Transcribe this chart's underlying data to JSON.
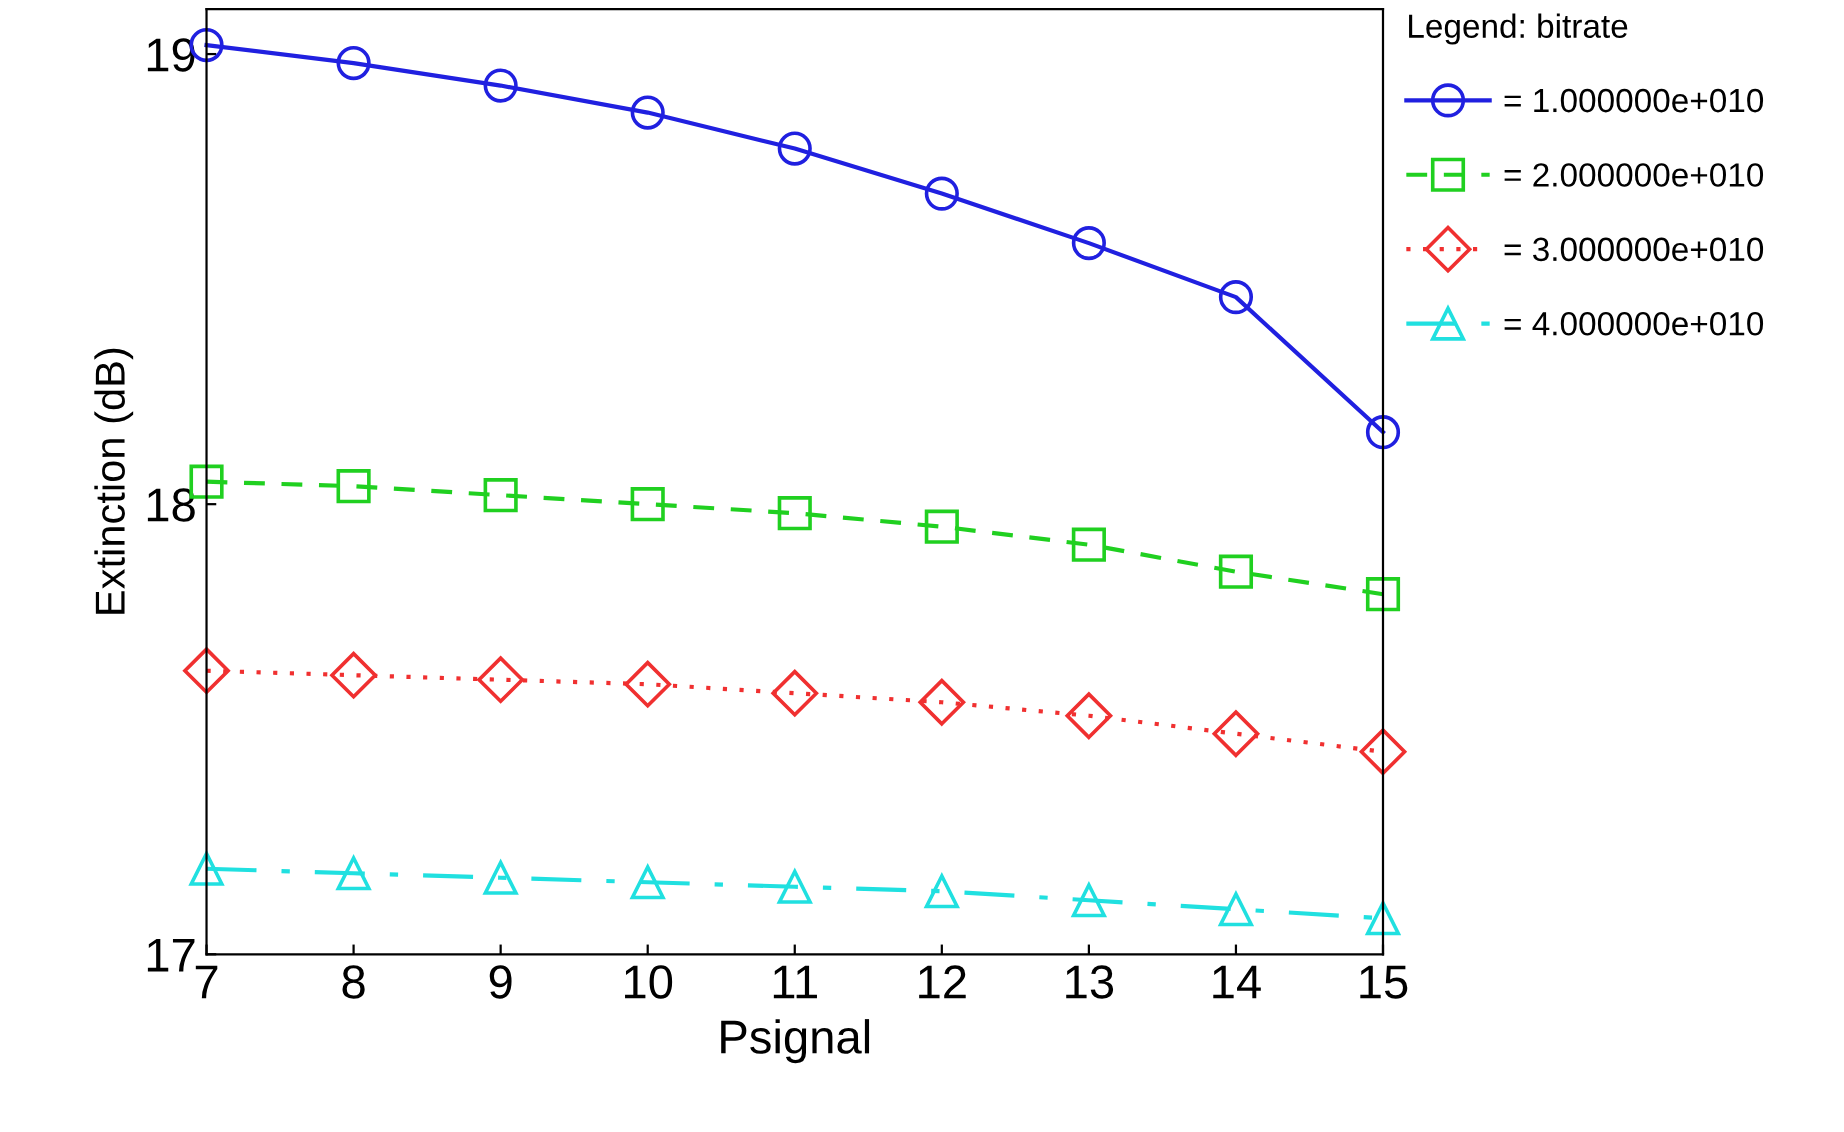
{
  "chart_data": {
    "type": "line",
    "xlabel": "Psignal",
    "ylabel": "Extinction (dB)",
    "legend_title": "Legend: bitrate",
    "legend": "right",
    "grid": false,
    "x": [
      7,
      8,
      9,
      10,
      11,
      12,
      13,
      14,
      15
    ],
    "xlim": [
      7,
      15
    ],
    "xticks": [
      7,
      8,
      9,
      10,
      11,
      12,
      13,
      14,
      15
    ],
    "ylim": [
      17,
      19.1
    ],
    "yticks": [
      17,
      18,
      19
    ],
    "series": [
      {
        "name": "= 1.000000e+010",
        "color": "#2020e0",
        "marker": "circle",
        "line_style": "solid",
        "values": [
          19.02,
          18.98,
          18.93,
          18.87,
          18.79,
          18.69,
          18.58,
          18.46,
          18.16
        ]
      },
      {
        "name": "= 2.000000e+010",
        "color": "#20d020",
        "marker": "square",
        "line_style": "dashed",
        "values": [
          18.05,
          18.04,
          18.02,
          18.0,
          17.98,
          17.95,
          17.91,
          17.85,
          17.8
        ]
      },
      {
        "name": "= 3.000000e+010",
        "color": "#f03030",
        "marker": "diamond",
        "line_style": "dotted",
        "values": [
          17.63,
          17.62,
          17.61,
          17.6,
          17.58,
          17.56,
          17.53,
          17.49,
          17.45
        ]
      },
      {
        "name": "= 4.000000e+010",
        "color": "#20e0e0",
        "marker": "triangle",
        "line_style": "dashdot",
        "values": [
          17.19,
          17.18,
          17.17,
          17.16,
          17.15,
          17.14,
          17.12,
          17.1,
          17.08
        ]
      }
    ]
  }
}
